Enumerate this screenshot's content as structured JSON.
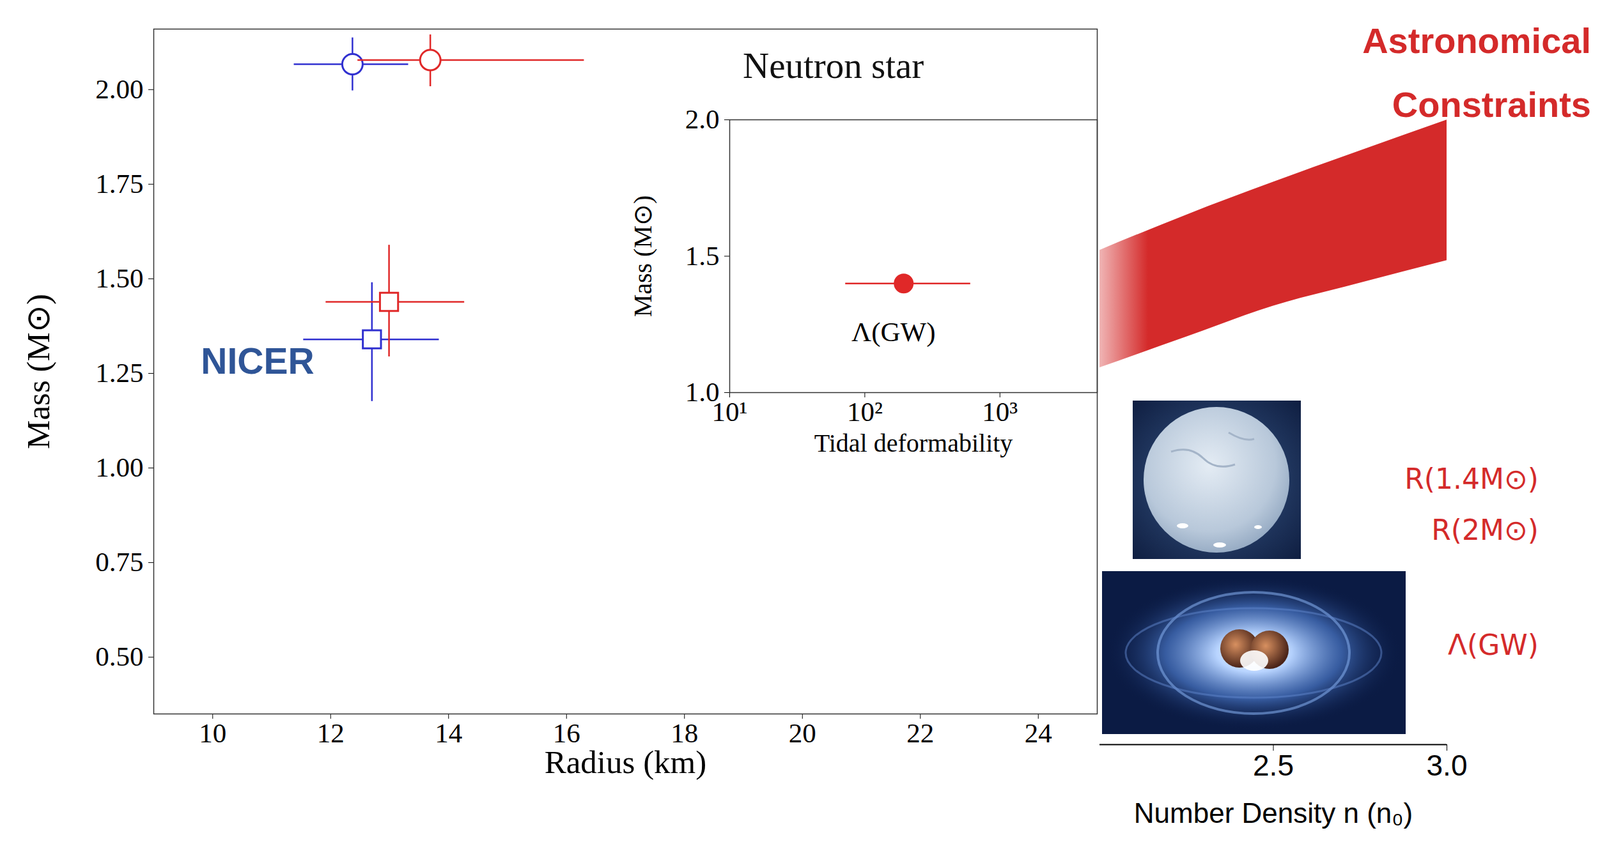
{
  "chart_data": [
    {
      "type": "scatter",
      "title": "Neutron star",
      "x_label": "Radius (km)",
      "y_label": "Mass (M⊙)",
      "xlim": [
        9,
        25
      ],
      "xticks": [
        10,
        12,
        14,
        16,
        18,
        20,
        22,
        24
      ],
      "ylim": [
        0.35,
        2.16
      ],
      "yticks": [
        {
          "value": 0.5,
          "label": "0.50"
        },
        0.75,
        {
          "value": 1,
          "label": "1.00"
        },
        1.25,
        {
          "value": 1.5,
          "label": "1.50"
        },
        1.75,
        {
          "value": 2,
          "label": "2.00"
        }
      ],
      "grid": false,
      "series": [
        {
          "color": "#3030d0",
          "marker": "open_circle",
          "x": [
            12.37
          ],
          "y": [
            2.067
          ],
          "x_low": [
            11.38
          ],
          "x_high": [
            13.32
          ],
          "y_low": [
            1.997
          ],
          "y_high": [
            2.137
          ]
        },
        {
          "color": "#e02828",
          "marker": "open_circle",
          "x": [
            13.69
          ],
          "y": [
            2.078
          ],
          "x_low": [
            12.46
          ],
          "x_high": [
            16.3
          ],
          "y_low": [
            2.008
          ],
          "y_high": [
            2.145
          ]
        },
        {
          "color": "#3030d0",
          "marker": "open_square",
          "x": [
            12.7
          ],
          "y": [
            1.34
          ],
          "x_low": [
            11.54
          ],
          "x_high": [
            13.84
          ],
          "y_low": [
            1.176
          ],
          "y_high": [
            1.49
          ]
        },
        {
          "color": "#e02828",
          "marker": "open_square",
          "x": [
            12.99
          ],
          "y": [
            1.439
          ],
          "x_low": [
            11.92
          ],
          "x_high": [
            14.27
          ],
          "y_low": [
            1.294
          ],
          "y_high": [
            1.589
          ]
        }
      ],
      "annotations": [
        {
          "text": "NICER",
          "x": 9.8,
          "y": 1.28,
          "color": "#2f5597"
        }
      ]
    },
    {
      "type": "scatter",
      "x_label": "Tidal deformability",
      "y_label": "Mass (M⊙)",
      "log": "x",
      "xlim": [
        10,
        5250
      ],
      "xticks": [
        {
          "value": 10,
          "label": "10¹"
        },
        {
          "value": 100,
          "label": "10²"
        },
        {
          "value": 1000,
          "label": "10³"
        }
      ],
      "ylim": [
        1,
        2
      ],
      "yticks": [
        {
          "value": 1,
          "label": "1.0"
        },
        1.5,
        {
          "value": 2,
          "label": "2.0"
        }
      ],
      "grid": false,
      "series": [
        {
          "color": "#e02828",
          "marker": "circle",
          "x": [
            194
          ],
          "y": [
            1.4
          ],
          "x_low": [
            72
          ],
          "x_high": [
            606
          ]
        }
      ],
      "annotations": [
        {
          "text": "Λ(GW)",
          "x": 163,
          "y": 1.22
        }
      ]
    },
    {
      "type": "area",
      "title": "Astronomical Constraints",
      "x_label": "Number Density n (n₀)",
      "x": [
        2,
        2.25,
        2.5,
        2.75,
        3
      ],
      "lower": [
        5.87,
        6.35,
        6.83,
        7.19,
        7.54
      ],
      "upper": [
        7.7,
        8.25,
        8.76,
        9.25,
        9.73
      ],
      "xlim": [
        2,
        3
      ],
      "xticks": [
        2.5,
        {
          "value": 3,
          "label": "3.0"
        }
      ],
      "ylim": [
        0,
        10
      ],
      "tick_labels": "x",
      "color": "#d42a2a",
      "labels": [
        "R(1.4M⊙)",
        "R(2M⊙)",
        "Λ(GW)"
      ]
    }
  ]
}
